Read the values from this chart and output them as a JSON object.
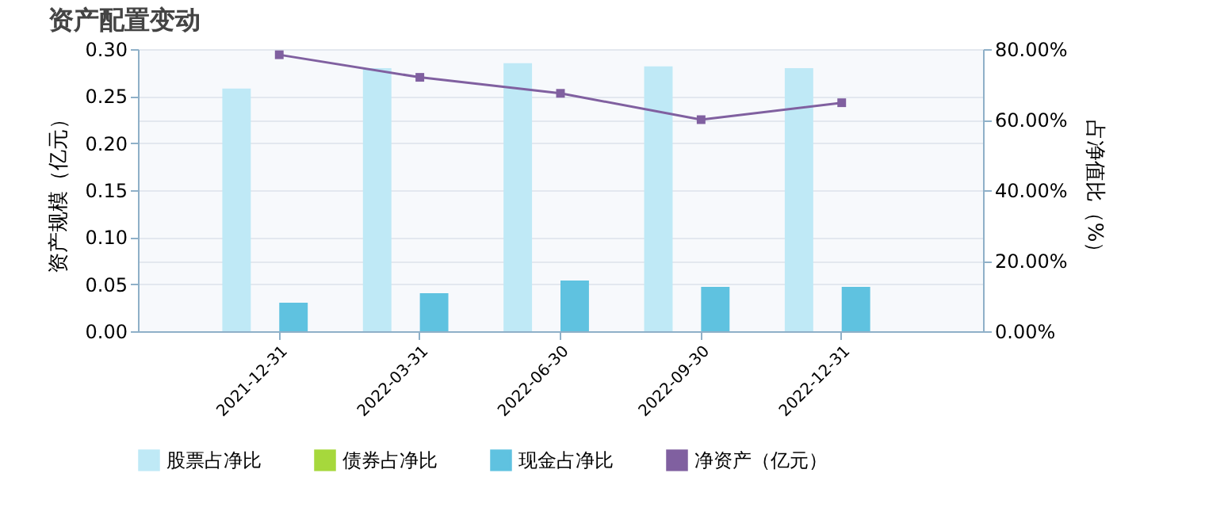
{
  "chart_data": {
    "type": "bar",
    "title": "资产配置变动",
    "ylabel": "资产规模（亿元）",
    "y2label": "占净值比（%）",
    "categories": [
      "2021-12-31",
      "2022-03-31",
      "2022-06-30",
      "2022-09-30",
      "2022-12-31"
    ],
    "series": [
      {
        "name": "股票占净比",
        "axis": "y2",
        "color": "#bfe9f6",
        "values": [
          68.8,
          74.6,
          76.0,
          75.1,
          74.6
        ]
      },
      {
        "name": "债券占净比",
        "axis": "y2",
        "color": "#a6d83c",
        "values": [
          null,
          null,
          null,
          null,
          null
        ]
      },
      {
        "name": "现金占净比",
        "axis": "y2",
        "color": "#5fc2e0",
        "values": [
          8.1,
          10.8,
          14.4,
          12.6,
          12.6
        ]
      },
      {
        "name": "净资产（亿元）",
        "type": "line",
        "axis": "y",
        "color": "#8060a0",
        "values": [
          0.294,
          0.27,
          0.253,
          0.225,
          0.243
        ]
      }
    ],
    "ylim": [
      0,
      0.3
    ],
    "yticks": [
      {
        "value": 0,
        "label": "0.00"
      },
      {
        "value": 0.05,
        "label": "0.05"
      },
      {
        "value": 0.1,
        "label": "0.10"
      },
      {
        "value": 0.15,
        "label": "0.15"
      },
      {
        "value": 0.2,
        "label": "0.20"
      },
      {
        "value": 0.25,
        "label": "0.25"
      },
      {
        "value": 0.3,
        "label": "0.30"
      }
    ],
    "y2lim": [
      0,
      80
    ],
    "y2ticks": [
      {
        "value": 0,
        "label": "0.00%"
      },
      {
        "value": 20,
        "label": "20.00%"
      },
      {
        "value": 40,
        "label": "40.00%"
      },
      {
        "value": 60,
        "label": "60.00%"
      },
      {
        "value": 80,
        "label": "80.00%"
      }
    ],
    "grid": "y",
    "legend": "bottom",
    "marker": "square",
    "line_style": "solid"
  }
}
